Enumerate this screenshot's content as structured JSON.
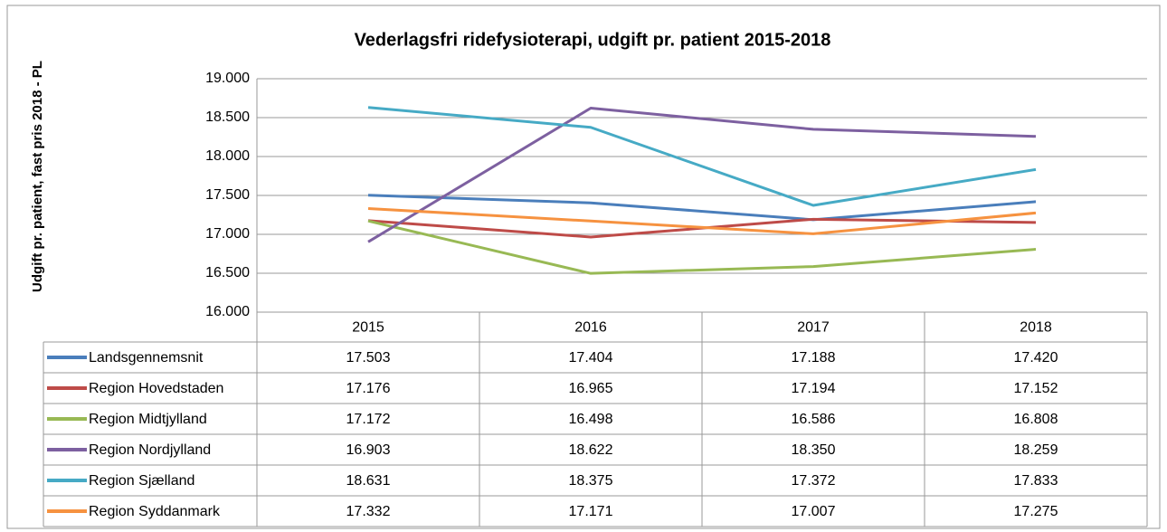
{
  "chart_data": {
    "type": "line",
    "title": "Vederlagsfri ridefysioterapi, udgift pr. patient 2015-2018",
    "y_label": "Udgift pr. patient,  fast pris 2018 - PL",
    "categories": [
      "2015",
      "2016",
      "2017",
      "2018"
    ],
    "ylim": [
      16000,
      19000
    ],
    "yticks": [
      {
        "value": 16000,
        "label": "16.000"
      },
      {
        "value": 16500,
        "label": "16.500"
      },
      {
        "value": 17000,
        "label": "17.000"
      },
      {
        "value": 17500,
        "label": "17.500"
      },
      {
        "value": 18000,
        "label": "18.000"
      },
      {
        "value": 18500,
        "label": "18.500"
      },
      {
        "value": 19000,
        "label": "19.000"
      }
    ],
    "grid": true,
    "legend": "table",
    "series": [
      {
        "name": "Landsgennemsnit",
        "color": "#4a7ebb",
        "values": [
          17503,
          17404,
          17188,
          17420
        ],
        "value_labels": [
          "17.503",
          "17.404",
          "17.188",
          "17.420"
        ]
      },
      {
        "name": "Region Hovedstaden",
        "color": "#be4b48",
        "values": [
          17176,
          16965,
          17194,
          17152
        ],
        "value_labels": [
          "17.176",
          "16.965",
          "17.194",
          "17.152"
        ]
      },
      {
        "name": "Region Midtjylland",
        "color": "#98b954",
        "values": [
          17172,
          16498,
          16586,
          16808
        ],
        "value_labels": [
          "17.172",
          "16.498",
          "16.586",
          "16.808"
        ]
      },
      {
        "name": "Region Nordjylland",
        "color": "#7d60a0",
        "values": [
          16903,
          18622,
          18350,
          18259
        ],
        "value_labels": [
          "16.903",
          "18.622",
          "18.350",
          "18.259"
        ]
      },
      {
        "name": "Region Sjælland",
        "color": "#46aac5",
        "values": [
          18631,
          18375,
          17372,
          17833
        ],
        "value_labels": [
          "18.631",
          "18.375",
          "17.372",
          "17.833"
        ]
      },
      {
        "name": "Region Syddanmark",
        "color": "#f69240",
        "values": [
          17332,
          17171,
          17007,
          17275
        ],
        "value_labels": [
          "17.332",
          "17.171",
          "17.007",
          "17.275"
        ]
      }
    ]
  }
}
